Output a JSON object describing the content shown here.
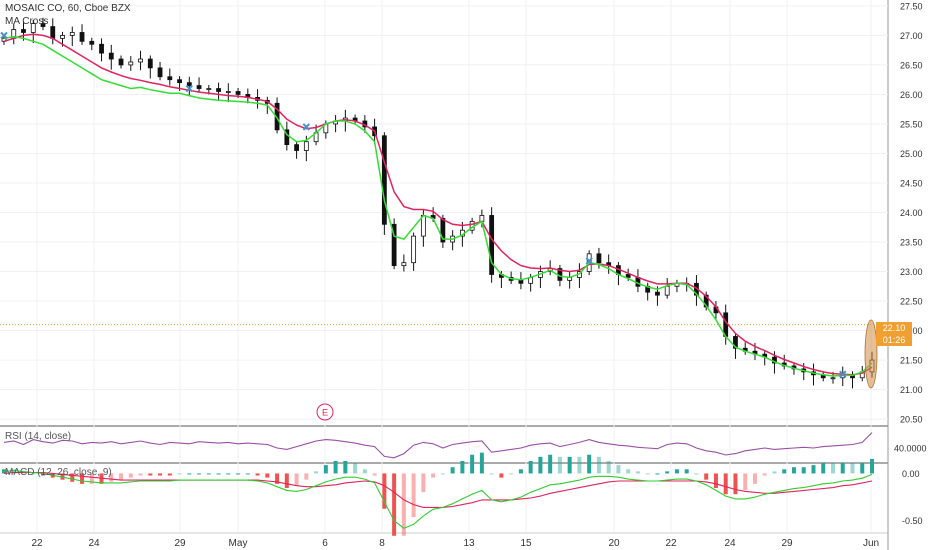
{
  "chart_data": [
    {
      "type": "candlestick",
      "title": "MOSAIC CO, 60, Cboe BZX",
      "indicator_label": "MA Cross",
      "ylim": [
        20.4,
        27.6
      ],
      "y_ticks": [
        "27.50",
        "27.00",
        "26.50",
        "26.00",
        "25.50",
        "25.00",
        "24.50",
        "24.00",
        "23.50",
        "23.00",
        "22.50",
        "22.00",
        "21.50",
        "21.00",
        "20.50"
      ],
      "y_tick_values": [
        27.5,
        27.0,
        26.5,
        26.0,
        25.5,
        25.0,
        24.5,
        24.0,
        23.5,
        23.0,
        22.5,
        22.0,
        21.5,
        21.0,
        20.5
      ],
      "x_ticks": [
        "22",
        "24",
        "29",
        "May",
        "6",
        "8",
        "13",
        "15",
        "20",
        "22",
        "24",
        "29",
        "Jun"
      ],
      "price_line": {
        "value": 22.1,
        "label": "22.10",
        "color": "#f0a030"
      },
      "countdown_label": "01:26",
      "earnings_marker": "E",
      "colors": {
        "up": "#ffffff",
        "down": "#111111",
        "fast_ma": "#33dd33",
        "slow_ma": "#e0245e",
        "cross": "#4a90c8"
      },
      "closes": [
        26.95,
        27.1,
        27.05,
        27.2,
        27.15,
        26.95,
        27.0,
        27.05,
        26.9,
        26.85,
        26.7,
        26.6,
        26.5,
        26.55,
        26.6,
        26.45,
        26.3,
        26.25,
        26.2,
        26.15,
        26.1,
        26.1,
        26.05,
        26.05,
        26.0,
        25.95,
        25.9,
        25.85,
        25.4,
        25.15,
        25.05,
        25.2,
        25.35,
        25.5,
        25.55,
        25.6,
        25.55,
        25.45,
        25.3,
        23.8,
        23.1,
        23.15,
        23.6,
        23.95,
        23.9,
        23.5,
        23.6,
        23.7,
        23.85,
        23.95,
        22.95,
        22.9,
        22.85,
        22.8,
        22.9,
        23.0,
        23.05,
        22.85,
        22.9,
        23.0,
        23.3,
        23.15,
        23.1,
        22.95,
        22.9,
        22.75,
        22.65,
        22.6,
        22.75,
        22.8,
        22.8,
        22.6,
        22.4,
        22.3,
        21.9,
        21.7,
        21.65,
        21.6,
        21.55,
        21.45,
        21.4,
        21.35,
        21.3,
        21.25,
        21.2,
        21.2,
        21.25,
        21.2,
        21.3,
        21.5
      ],
      "fast_ma": [
        26.95,
        26.98,
        26.95,
        26.9,
        26.85,
        26.75,
        26.65,
        26.55,
        26.45,
        26.35,
        26.25,
        26.2,
        26.15,
        26.1,
        26.12,
        26.08,
        26.05,
        26.02,
        26.02,
        25.98,
        25.94,
        25.92,
        25.9,
        25.89,
        25.88,
        25.87,
        25.85,
        25.82,
        25.6,
        25.32,
        25.2,
        25.22,
        25.35,
        25.5,
        25.55,
        25.55,
        25.5,
        25.38,
        25.2,
        24.2,
        23.6,
        23.55,
        23.75,
        23.95,
        23.9,
        23.55,
        23.55,
        23.62,
        23.75,
        23.85,
        23.15,
        22.95,
        22.88,
        22.86,
        22.9,
        22.96,
        23.02,
        22.92,
        22.9,
        22.96,
        23.15,
        23.12,
        23.05,
        22.95,
        22.88,
        22.8,
        22.74,
        22.7,
        22.76,
        22.8,
        22.78,
        22.62,
        22.42,
        22.18,
        21.9,
        21.72,
        21.65,
        21.6,
        21.55,
        21.47,
        21.41,
        21.36,
        21.32,
        21.28,
        21.25,
        21.23,
        21.24,
        21.24,
        21.3,
        21.45
      ],
      "slow_ma": [
        26.9,
        26.95,
        27.0,
        27.02,
        27.0,
        26.95,
        26.85,
        26.75,
        26.65,
        26.55,
        26.45,
        26.38,
        26.32,
        26.27,
        26.24,
        26.2,
        26.17,
        26.13,
        26.1,
        26.07,
        26.04,
        26.02,
        26.0,
        25.98,
        25.97,
        25.95,
        25.92,
        25.88,
        25.75,
        25.58,
        25.48,
        25.42,
        25.44,
        25.5,
        25.55,
        25.57,
        25.55,
        25.48,
        25.38,
        24.85,
        24.35,
        24.1,
        24.05,
        24.05,
        24.02,
        23.88,
        23.8,
        23.78,
        23.8,
        23.85,
        23.55,
        23.35,
        23.2,
        23.1,
        23.06,
        23.05,
        23.06,
        23.02,
        23.0,
        23.02,
        23.12,
        23.13,
        23.1,
        23.04,
        22.97,
        22.9,
        22.84,
        22.79,
        22.79,
        22.8,
        22.8,
        22.72,
        22.58,
        22.4,
        22.15,
        21.95,
        21.82,
        21.73,
        21.66,
        21.58,
        21.51,
        21.45,
        21.39,
        21.34,
        21.3,
        21.27,
        21.26,
        21.25,
        21.28,
        21.38
      ]
    },
    {
      "type": "line",
      "title": "RSI (14, close)",
      "y_ticks": [
        "40.0000"
      ],
      "color": "#9b4fa6",
      "values": [
        48,
        50,
        45,
        52,
        49,
        47,
        51,
        50,
        46,
        48,
        47,
        49,
        46,
        48,
        50,
        47,
        45,
        48,
        47,
        46,
        49,
        48,
        47,
        48,
        46,
        47,
        46,
        45,
        40,
        38,
        42,
        46,
        50,
        52,
        51,
        49,
        47,
        44,
        42,
        28,
        26,
        32,
        44,
        48,
        46,
        40,
        45,
        47,
        49,
        50,
        34,
        36,
        38,
        40,
        44,
        46,
        47,
        42,
        45,
        48,
        52,
        48,
        46,
        44,
        43,
        41,
        40,
        39,
        45,
        47,
        46,
        40,
        36,
        34,
        30,
        32,
        36,
        38,
        40,
        38,
        39,
        40,
        41,
        40,
        42,
        43,
        44,
        45,
        48,
        62
      ]
    },
    {
      "type": "bar",
      "title": "MACD (12, 26, close, 9)",
      "y_ticks": [
        "0.00",
        "-0.50"
      ],
      "y_tick_values": [
        0.0,
        -0.5
      ],
      "ylim": [
        -0.62,
        0.1
      ],
      "colors": {
        "macd": "#33cc33",
        "signal": "#e0245e",
        "hist_up": "#26a69a",
        "hist_down": "#ef5350"
      },
      "macd": [
        0.02,
        0.03,
        0.02,
        0.01,
        0.0,
        -0.02,
        -0.04,
        -0.06,
        -0.08,
        -0.09,
        -0.1,
        -0.1,
        -0.1,
        -0.09,
        -0.08,
        -0.08,
        -0.08,
        -0.08,
        -0.07,
        -0.07,
        -0.07,
        -0.07,
        -0.07,
        -0.07,
        -0.07,
        -0.07,
        -0.08,
        -0.1,
        -0.14,
        -0.18,
        -0.19,
        -0.17,
        -0.13,
        -0.09,
        -0.06,
        -0.04,
        -0.04,
        -0.06,
        -0.1,
        -0.3,
        -0.5,
        -0.58,
        -0.54,
        -0.45,
        -0.38,
        -0.36,
        -0.32,
        -0.27,
        -0.22,
        -0.18,
        -0.28,
        -0.3,
        -0.28,
        -0.25,
        -0.2,
        -0.16,
        -0.12,
        -0.11,
        -0.09,
        -0.07,
        -0.04,
        -0.03,
        -0.03,
        -0.04,
        -0.06,
        -0.07,
        -0.08,
        -0.08,
        -0.07,
        -0.06,
        -0.06,
        -0.08,
        -0.12,
        -0.18,
        -0.24,
        -0.27,
        -0.27,
        -0.25,
        -0.22,
        -0.2,
        -0.18,
        -0.16,
        -0.15,
        -0.13,
        -0.11,
        -0.1,
        -0.08,
        -0.07,
        -0.05,
        -0.01
      ],
      "signal": [
        0.0,
        0.01,
        0.01,
        0.01,
        0.01,
        0.0,
        -0.01,
        -0.02,
        -0.03,
        -0.04,
        -0.05,
        -0.06,
        -0.07,
        -0.07,
        -0.07,
        -0.07,
        -0.07,
        -0.07,
        -0.07,
        -0.07,
        -0.07,
        -0.07,
        -0.07,
        -0.07,
        -0.07,
        -0.07,
        -0.07,
        -0.08,
        -0.09,
        -0.11,
        -0.13,
        -0.14,
        -0.14,
        -0.13,
        -0.12,
        -0.1,
        -0.09,
        -0.08,
        -0.09,
        -0.13,
        -0.2,
        -0.28,
        -0.33,
        -0.36,
        -0.36,
        -0.36,
        -0.35,
        -0.33,
        -0.31,
        -0.28,
        -0.28,
        -0.28,
        -0.28,
        -0.27,
        -0.26,
        -0.24,
        -0.21,
        -0.19,
        -0.17,
        -0.15,
        -0.13,
        -0.11,
        -0.09,
        -0.08,
        -0.08,
        -0.08,
        -0.08,
        -0.08,
        -0.08,
        -0.08,
        -0.08,
        -0.08,
        -0.09,
        -0.11,
        -0.14,
        -0.17,
        -0.19,
        -0.2,
        -0.21,
        -0.21,
        -0.2,
        -0.19,
        -0.18,
        -0.17,
        -0.16,
        -0.15,
        -0.13,
        -0.12,
        -0.1,
        -0.08
      ]
    }
  ]
}
